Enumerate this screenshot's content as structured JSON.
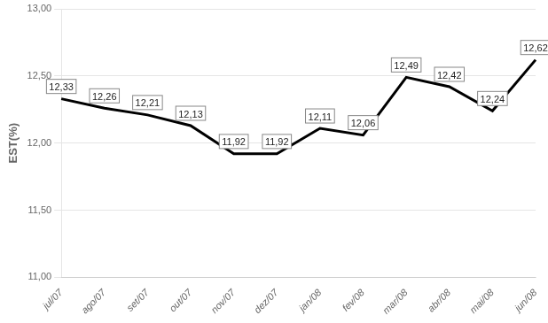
{
  "chart_data": {
    "type": "line",
    "categories": [
      "jul/07",
      "ago/07",
      "set/07",
      "out/07",
      "nov/07",
      "dez/07",
      "jan/08",
      "fev/08",
      "mar/08",
      "abr/08",
      "mai/08",
      "jun/08"
    ],
    "values": [
      12.33,
      12.26,
      12.21,
      12.13,
      11.92,
      11.92,
      12.11,
      12.06,
      12.49,
      12.42,
      12.24,
      12.62
    ],
    "value_labels": [
      "12,33",
      "12,26",
      "12,21",
      "12,13",
      "11,92",
      "11,92",
      "12,11",
      "12,06",
      "12,49",
      "12,42",
      "12,24",
      "12,62"
    ],
    "data_labels": true,
    "color": "#000000",
    "ylabel": "EST(%)",
    "ylim": [
      11.0,
      13.0
    ],
    "yticks": [
      {
        "value": 11.0,
        "label": "11,00"
      },
      {
        "value": 11.5,
        "label": "11,50"
      },
      {
        "value": 12.0,
        "label": "12,00"
      },
      {
        "value": 12.5,
        "label": "12,50"
      },
      {
        "value": 13.0,
        "label": "13,00"
      }
    ],
    "grid": true
  }
}
